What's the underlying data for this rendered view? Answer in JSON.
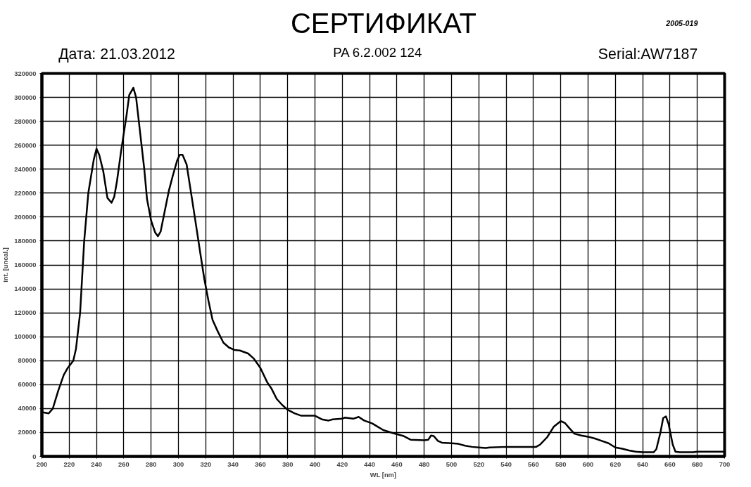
{
  "chart_data": {
    "type": "line",
    "title": "СЕРТИФИКАТ",
    "xlabel": "WL [nm]",
    "ylabel": "Int. [uncal.]",
    "annotations": [
      "Дата: 21.03.2012",
      "PA 6.2.002 124",
      "Serial:AW7187",
      "2005-019"
    ],
    "xlim": [
      200,
      700
    ],
    "ylim": [
      0,
      320000
    ],
    "xticks": [
      200,
      220,
      240,
      260,
      280,
      300,
      320,
      340,
      360,
      380,
      400,
      420,
      440,
      460,
      480,
      500,
      520,
      540,
      560,
      580,
      600,
      620,
      640,
      660,
      680,
      700
    ],
    "yticks": [
      0,
      20000,
      40000,
      60000,
      80000,
      100000,
      120000,
      140000,
      160000,
      180000,
      200000,
      220000,
      240000,
      260000,
      280000,
      300000,
      320000
    ],
    "grid": true,
    "marker": "none",
    "line_style": "solid",
    "series": [
      {
        "color": "#000000",
        "x": [
          200,
          205,
          208,
          212,
          216,
          219,
          223,
          225,
          228,
          231,
          234,
          238,
          240,
          242,
          245,
          248,
          251,
          253,
          255,
          258,
          262,
          264,
          267,
          269,
          272,
          275,
          277,
          280,
          283,
          285,
          287,
          290,
          293,
          296,
          299,
          301,
          303,
          306,
          309,
          312,
          316,
          319,
          322,
          325,
          329,
          333,
          337,
          341,
          345,
          351,
          355,
          360,
          365,
          368,
          372,
          376,
          380,
          385,
          390,
          400,
          405,
          410,
          413,
          420,
          422,
          428,
          432,
          436,
          442,
          445,
          450,
          457,
          465,
          470,
          480,
          483,
          485,
          487,
          490,
          493,
          500,
          505,
          510,
          515,
          520,
          525,
          528,
          540,
          562,
          565,
          570,
          575,
          580,
          583,
          586,
          590,
          595,
          600,
          605,
          610,
          615,
          620,
          625,
          630,
          635,
          640,
          648,
          650,
          653,
          655,
          657,
          659,
          662,
          664,
          667,
          677,
          680,
          700
        ],
        "values": [
          37000,
          36000,
          40000,
          55000,
          68000,
          74000,
          80000,
          90000,
          120000,
          180000,
          220000,
          248000,
          257000,
          252000,
          238000,
          216000,
          212000,
          217000,
          230000,
          255000,
          285000,
          302000,
          308000,
          300000,
          270000,
          240000,
          215000,
          197000,
          187000,
          184000,
          188000,
          205000,
          222000,
          235000,
          247000,
          252000,
          252000,
          244000,
          222000,
          200000,
          170000,
          148000,
          130000,
          114000,
          104000,
          95000,
          91000,
          89000,
          88500,
          86000,
          82000,
          74000,
          62000,
          57000,
          48000,
          43000,
          39000,
          36000,
          34000,
          34000,
          31000,
          30000,
          31000,
          31500,
          32500,
          31500,
          33000,
          30000,
          27500,
          25500,
          22000,
          19500,
          17000,
          14000,
          13500,
          14000,
          17500,
          17000,
          13000,
          11500,
          11000,
          10500,
          9000,
          8000,
          7500,
          7000,
          7500,
          8000,
          8000,
          10000,
          16000,
          25000,
          29500,
          28000,
          24000,
          19000,
          17500,
          16500,
          15000,
          13000,
          11000,
          7500,
          6500,
          5000,
          4000,
          3500,
          3500,
          6000,
          20000,
          32000,
          33500,
          27000,
          10000,
          4000,
          3500,
          3500,
          4000,
          4000
        ]
      }
    ]
  }
}
